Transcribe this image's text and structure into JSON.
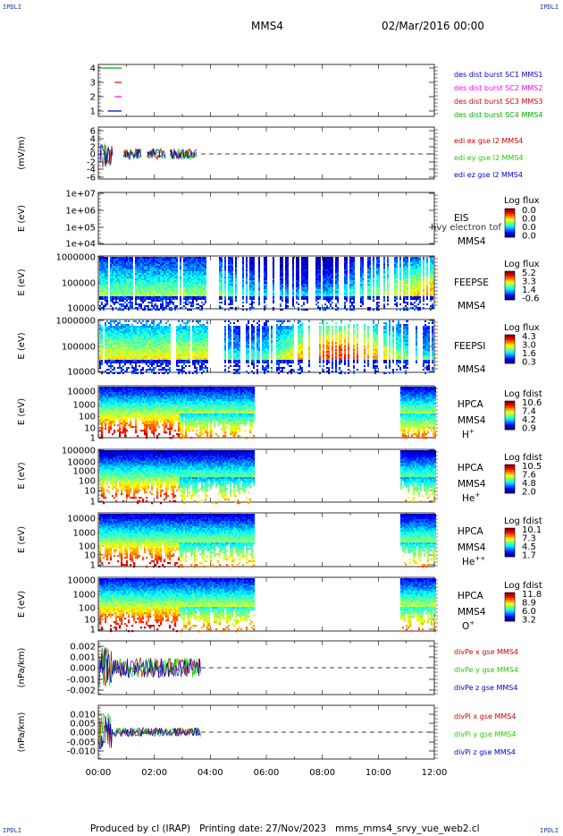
{
  "corners": {
    "tl": "IPDLI",
    "tr": "IPDLI",
    "bl": "IPDLI",
    "br": "IPDLI"
  },
  "header": {
    "spacecraft": "MMS4",
    "datetime": "02/Mar/2016 00:00"
  },
  "footer": {
    "text": "Produced by cl (IRAP)   Printing date: 27/Nov/2023   mms_mms4_srvy_vue_web2.cl"
  },
  "colors": {
    "mms1": "#000000",
    "mms2": "#ff0000",
    "mms3": "#ff00ff",
    "mms4": "#00aa00",
    "ex": "#cc0000",
    "ey": "#22cc00",
    "ez": "#0000cc"
  },
  "chart_data": [
    {
      "type": "line",
      "panel": "burst",
      "ylim": [
        0.5,
        4.5
      ],
      "yticks": [
        "4",
        "3",
        "2",
        "1"
      ],
      "x_ticks": [
        "00:00",
        "02:00",
        "04:00",
        "06:00",
        "08:00",
        "10:00",
        "12:00"
      ],
      "legend": [
        "des dist burst SC1 MMS1",
        "des dist burst SC2 MMS2",
        "des dist burst SC3 MMS3",
        "des dist burst SC4 MMS4"
      ],
      "series": [
        {
          "level": 4,
          "x": [
            "00:10",
            "00:50"
          ]
        },
        {
          "level": 3,
          "x": [
            "00:35",
            "00:50"
          ]
        },
        {
          "level": 2,
          "x": [
            "00:35",
            "00:50"
          ]
        },
        {
          "level": 1,
          "x": [
            "00:20",
            "00:50"
          ]
        }
      ]
    },
    {
      "type": "line",
      "panel": "edi",
      "ylabel": "(mV/m)",
      "ylim": [
        -6,
        6
      ],
      "yticks": [
        "6",
        "4",
        "2",
        "0",
        "-2",
        "-4",
        "-6"
      ],
      "legend": [
        "edi ex gse l2 MMS4",
        "edi ey gse l2 MMS4",
        "edi ez gse l2 MMS4"
      ],
      "data_extent": [
        "00:00",
        "03:40"
      ]
    },
    {
      "type": "heatmap",
      "panel": "eis",
      "ylabel": "E (eV)",
      "yticks": [
        "1e+07",
        "1e+06",
        "1e+05",
        "1e+04"
      ],
      "label_lines": [
        "EIS",
        "MMS4"
      ],
      "overlay_text": "hvy electron tof",
      "cbar_title": "Log flux",
      "cbar_ticks": [
        "0.0",
        "0.0",
        "0.0",
        "0.0"
      ]
    },
    {
      "type": "heatmap",
      "panel": "feepse",
      "ylabel": "E (eV)",
      "yticks": [
        "1000000",
        "100000",
        "10000"
      ],
      "label_lines": [
        "FEEPSE",
        "MMS4"
      ],
      "cbar_title": "Log flux",
      "cbar_ticks": [
        "5.2",
        "3.3",
        "1.4",
        "-0.6"
      ]
    },
    {
      "type": "heatmap",
      "panel": "feepsi",
      "ylabel": "E (eV)",
      "yticks": [
        "1000000",
        "100000",
        "10000"
      ],
      "label_lines": [
        "FEEPSI",
        "MMS4"
      ],
      "cbar_title": "Log flux",
      "cbar_ticks": [
        "4.3",
        "3.0",
        "1.6",
        "0.3"
      ]
    },
    {
      "type": "heatmap",
      "panel": "hpca-h",
      "ylabel": "E (eV)",
      "yticks": [
        "10000",
        "1000",
        "100",
        "10",
        "1"
      ],
      "label_lines": [
        "HPCA",
        "MMS4"
      ],
      "species": "H",
      "species_sup": "+",
      "cbar_title": "Log fdist",
      "cbar_ticks": [
        "10.6",
        "7.4",
        "4.2",
        "0.9"
      ],
      "data_intervals": [
        [
          "00:00",
          "05:35"
        ],
        [
          "10:45",
          "12:00"
        ]
      ]
    },
    {
      "type": "heatmap",
      "panel": "hpca-he",
      "ylabel": "E (eV)",
      "yticks": [
        "100000",
        "10000",
        "1000",
        "100",
        "10",
        "1"
      ],
      "label_lines": [
        "HPCA",
        "MMS4"
      ],
      "species": "He",
      "species_sup": "+",
      "cbar_title": "Log fdist",
      "cbar_ticks": [
        "10.5",
        "7.6",
        "4.8",
        "2.0"
      ],
      "data_intervals": [
        [
          "00:00",
          "05:35"
        ],
        [
          "10:45",
          "12:00"
        ]
      ]
    },
    {
      "type": "heatmap",
      "panel": "hpca-he2",
      "ylabel": "E (eV)",
      "yticks": [
        "10000",
        "1000",
        "100",
        "10",
        "1"
      ],
      "label_lines": [
        "HPCA",
        "MMS4"
      ],
      "species": "He",
      "species_sup": "++",
      "cbar_title": "Log fdist",
      "cbar_ticks": [
        "10.1",
        "7.3",
        "4.5",
        "1.7"
      ],
      "data_intervals": [
        [
          "00:00",
          "05:35"
        ],
        [
          "10:45",
          "12:00"
        ]
      ]
    },
    {
      "type": "heatmap",
      "panel": "hpca-o",
      "ylabel": "E (eV)",
      "yticks": [
        "10000",
        "1000",
        "100",
        "10",
        "1"
      ],
      "label_lines": [
        "HPCA",
        "MMS4"
      ],
      "species": "O",
      "species_sup": "+",
      "cbar_title": "Log fdist",
      "cbar_ticks": [
        "11.8",
        "8.9",
        "6.0",
        "3.2"
      ],
      "data_intervals": [
        [
          "00:00",
          "05:35"
        ],
        [
          "10:45",
          "12:00"
        ]
      ]
    },
    {
      "type": "line",
      "panel": "divpe",
      "ylabel": "(nPa/km)",
      "yticks": [
        "0.002",
        "0.001",
        "0.000",
        "-0.001",
        "-0.002"
      ],
      "legend": [
        "divPe x gse MMS4",
        "divPe y gse MMS4",
        "divPe z gse MMS4"
      ],
      "data_extent": [
        "00:00",
        "03:40"
      ]
    },
    {
      "type": "line",
      "panel": "divpi",
      "ylabel": "(nPa/km)",
      "yticks": [
        "0.010",
        "0.005",
        "0.000",
        "-0.005",
        "-0.010"
      ],
      "legend": [
        "divPi x gse MMS4",
        "divPi y gse MMS4",
        "divPi z gse MMS4"
      ],
      "data_extent": [
        "00:00",
        "03:40"
      ]
    }
  ]
}
